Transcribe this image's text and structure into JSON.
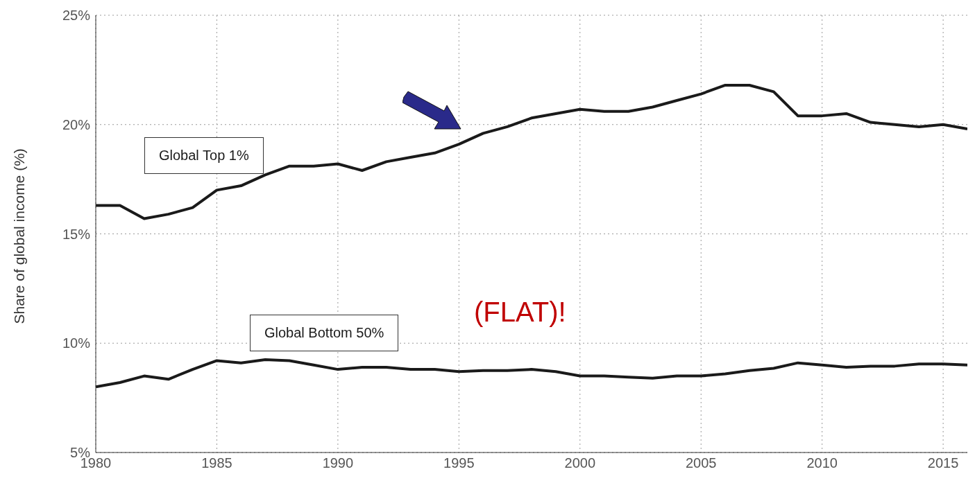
{
  "chart_data": {
    "type": "line",
    "ylabel": "Share of global income (%)",
    "x": [
      1980,
      1981,
      1982,
      1983,
      1984,
      1985,
      1986,
      1987,
      1988,
      1989,
      1990,
      1991,
      1992,
      1993,
      1994,
      1995,
      1996,
      1997,
      1998,
      1999,
      2000,
      2001,
      2002,
      2003,
      2004,
      2005,
      2006,
      2007,
      2008,
      2009,
      2010,
      2011,
      2012,
      2013,
      2014,
      2015,
      2016
    ],
    "series": [
      {
        "name": "Global Top 1%",
        "color": "#1a1a1a",
        "values": [
          16.3,
          16.3,
          15.7,
          15.9,
          16.2,
          17.0,
          17.2,
          17.7,
          18.1,
          18.1,
          18.2,
          17.9,
          18.3,
          18.5,
          18.7,
          19.1,
          19.6,
          19.9,
          20.3,
          20.5,
          20.7,
          20.6,
          20.6,
          20.8,
          21.1,
          21.4,
          21.8,
          21.8,
          21.5,
          20.4,
          20.4,
          20.5,
          20.1,
          20.0,
          19.9,
          20.0,
          19.8
        ]
      },
      {
        "name": "Global Bottom 50%",
        "color": "#1a1a1a",
        "values": [
          8.0,
          8.2,
          8.5,
          8.35,
          8.8,
          9.2,
          9.1,
          9.25,
          9.2,
          9.0,
          8.8,
          8.9,
          8.9,
          8.8,
          8.8,
          8.7,
          8.75,
          8.75,
          8.8,
          8.7,
          8.5,
          8.5,
          8.45,
          8.4,
          8.5,
          8.5,
          8.6,
          8.75,
          8.85,
          9.1,
          9.0,
          8.9,
          8.95,
          8.95,
          9.05,
          9.05,
          9.0
        ]
      }
    ],
    "xlim": [
      1980,
      2016
    ],
    "xticks": [
      1980,
      1985,
      1990,
      1995,
      2000,
      2005,
      2010,
      2015
    ],
    "ylim": [
      5,
      25
    ],
    "yticks": [
      {
        "value": 5,
        "label": "5%"
      },
      {
        "value": 10,
        "label": "10%"
      },
      {
        "value": 15,
        "label": "15%"
      },
      {
        "value": 20,
        "label": "20%"
      },
      {
        "value": 25,
        "label": "25%"
      }
    ],
    "annotations": [
      "(FLAT)!"
    ],
    "grid": true,
    "legend": false,
    "marker": "none",
    "line_style": "solid"
  }
}
